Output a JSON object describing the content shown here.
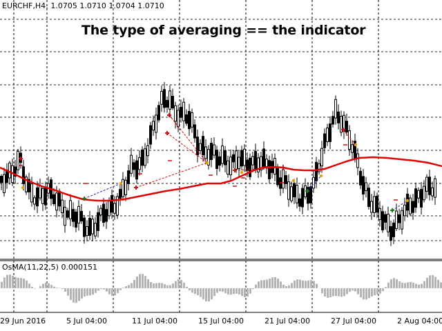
{
  "header": {
    "symbol_info": "EURCHF,H4: 1.0705 1.0710 1.0704 1.0710",
    "title": "The type of averaging == the indicator"
  },
  "indicator": {
    "label": "OsMA(11,22,5) 0.000151"
  },
  "x_axis": {
    "labels": [
      "29 Jun 2016",
      "5 Jul 04:00",
      "11 Jul 04:00",
      "15 Jul 04:00",
      "21 Jul 04:00",
      "27 Jul 04:00",
      "2 Aug 04:00"
    ]
  },
  "colors": {
    "candles": "#000000",
    "moving_average": "#e00000",
    "osma_histogram": "#b4b4b4",
    "buy_marker": "#1a7a1a",
    "sell_marker": "#d01010",
    "arrow_marker": "#e8a000",
    "buy_trend_line": "#2020c0",
    "sell_trend_line": "#e00000"
  },
  "chart_data": {
    "type": "candlestick",
    "symbol": "EURCHF",
    "timeframe": "H4",
    "series": [
      {
        "name": "price",
        "values": [
          1.0705,
          1.071,
          1.0704,
          1.071
        ]
      }
    ],
    "indicator": {
      "name": "OsMA(11,22,5)",
      "value": 0.000151
    },
    "x_tick_labels": [
      "29 Jun 2016",
      "5 Jul 04:00",
      "11 Jul 04:00",
      "15 Jul 04:00",
      "21 Jul 04:00",
      "27 Jul 04:00",
      "2 Aug 04:00"
    ],
    "grid": true
  }
}
